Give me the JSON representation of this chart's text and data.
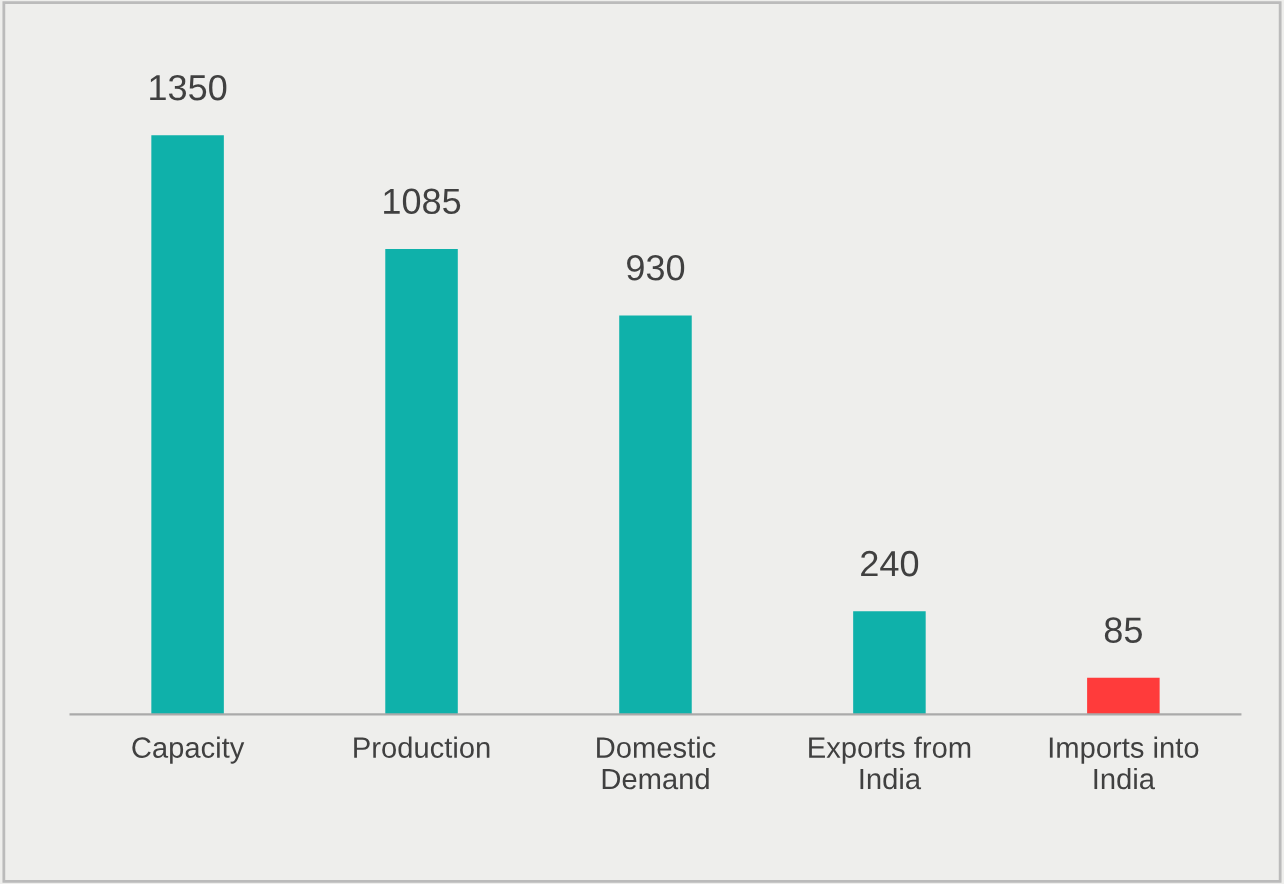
{
  "chart_data": {
    "type": "bar",
    "categories": [
      "Capacity",
      "Production",
      "Domestic\nDemand",
      "Exports from\nIndia",
      "Imports into\nIndia"
    ],
    "values": [
      1350,
      1085,
      930,
      240,
      85
    ],
    "colors": [
      "#0fb1aa",
      "#0fb1aa",
      "#0fb1aa",
      "#0fb1aa",
      "#ff3b3b"
    ],
    "data_labels": true,
    "grid": false,
    "legend": false
  }
}
